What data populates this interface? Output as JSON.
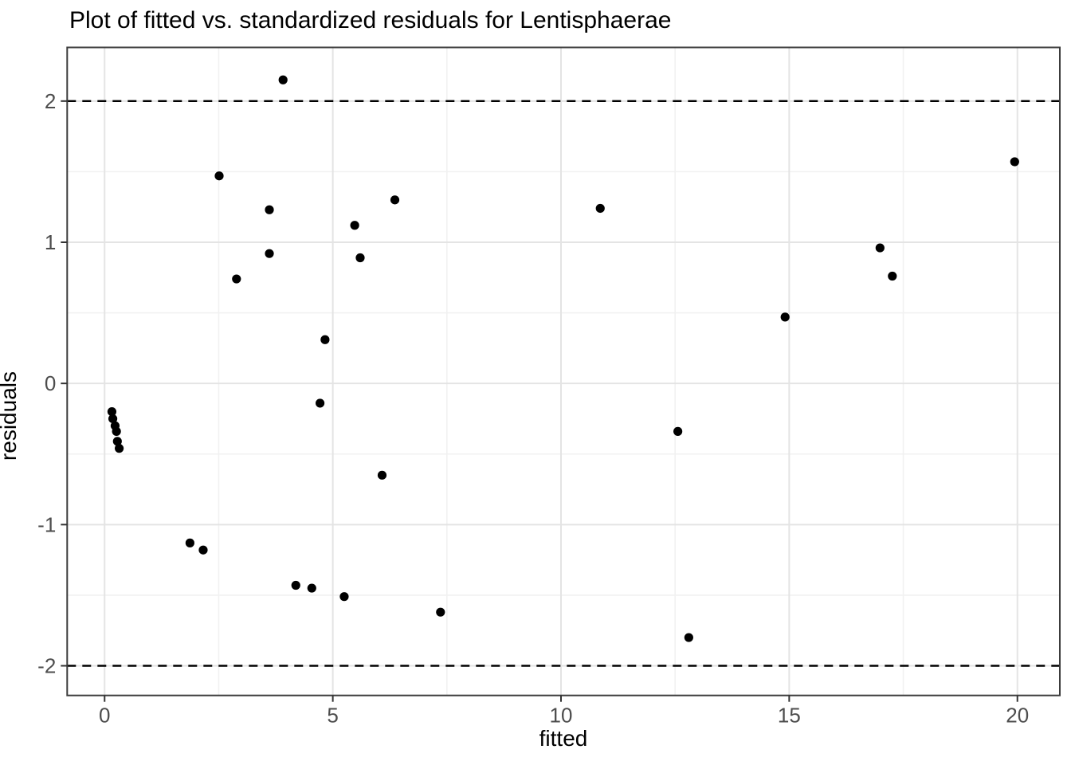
{
  "chart_data": {
    "type": "scatter",
    "title": "Plot of fitted vs. standardized residuals for Lentisphaerae",
    "xlabel": "fitted",
    "ylabel": "residuals",
    "xlim": [
      -0.82,
      20.93
    ],
    "ylim": [
      -2.21,
      2.38
    ],
    "x_ticks": [
      0,
      5,
      10,
      15,
      20
    ],
    "y_ticks": [
      -2,
      -1,
      0,
      1,
      2
    ],
    "x_minor_ticks": [
      2.5,
      7.5,
      12.5,
      17.5
    ],
    "y_minor_ticks": [
      -1.5,
      -0.5,
      0.5,
      1.5
    ],
    "grid": true,
    "legend_position": "none",
    "reference_lines": [
      {
        "y": 2,
        "style": "dashed"
      },
      {
        "y": -2,
        "style": "dashed"
      }
    ],
    "series": [
      {
        "name": "standardized residuals",
        "points": [
          [
            0.16,
            -0.2
          ],
          [
            0.18,
            -0.25
          ],
          [
            0.23,
            -0.3
          ],
          [
            0.26,
            -0.34
          ],
          [
            0.28,
            -0.41
          ],
          [
            0.32,
            -0.46
          ],
          [
            1.87,
            -1.13
          ],
          [
            2.16,
            -1.18
          ],
          [
            2.51,
            1.47
          ],
          [
            2.89,
            0.74
          ],
          [
            3.61,
            0.92
          ],
          [
            3.61,
            1.23
          ],
          [
            3.91,
            2.15
          ],
          [
            4.19,
            -1.43
          ],
          [
            4.54,
            -1.45
          ],
          [
            4.72,
            -0.14
          ],
          [
            4.83,
            0.31
          ],
          [
            5.25,
            -1.51
          ],
          [
            5.48,
            1.12
          ],
          [
            5.6,
            0.89
          ],
          [
            6.08,
            -0.65
          ],
          [
            6.36,
            1.3
          ],
          [
            7.36,
            -1.62
          ],
          [
            10.86,
            1.24
          ],
          [
            12.56,
            -0.34
          ],
          [
            12.8,
            -1.8
          ],
          [
            14.91,
            0.47
          ],
          [
            16.99,
            0.96
          ],
          [
            17.26,
            0.76
          ],
          [
            19.94,
            1.57
          ]
        ]
      }
    ]
  },
  "colors": {
    "point": "#000000",
    "tick_label": "#4d4d4d",
    "grid_major": "#e4e4e4",
    "grid_minor": "#f1f1f1",
    "panel_border": "#3c3c3c",
    "tick_mark": "#333333",
    "reference_line": "#000000",
    "background": "#ffffff"
  }
}
